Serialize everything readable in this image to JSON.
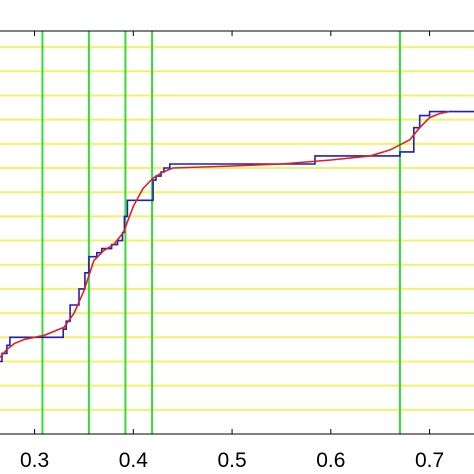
{
  "chart_data": {
    "type": "line",
    "title": "",
    "xlabel": "",
    "ylabel": "",
    "xlim": [
      0.265,
      0.745
    ],
    "ylim": [
      0,
      1
    ],
    "x_ticks": [
      0.3,
      0.4,
      0.5,
      0.6,
      0.7
    ],
    "x_tick_labels": [
      "0.3",
      "0.4",
      "0.5",
      "0.6",
      "0.7"
    ],
    "grid": false,
    "colors": {
      "background": "#ffffff",
      "axes": "#000000",
      "horizontal_reference": "#f4f06a",
      "vertical_reference": "#33dd33",
      "step_series": "#1f1fbf",
      "fit_series": "#e0201c"
    },
    "horizontal_reference_y": [
      0.06,
      0.12,
      0.18,
      0.24,
      0.3,
      0.36,
      0.42,
      0.48,
      0.54,
      0.6,
      0.66,
      0.72,
      0.78,
      0.84,
      0.9,
      0.96
    ],
    "vertical_reference_x": [
      0.308,
      0.355,
      0.392,
      0.419,
      0.67
    ],
    "series": [
      {
        "style": "step",
        "x": [
          0.265,
          0.267,
          0.267,
          0.272,
          0.272,
          0.275,
          0.275,
          0.329,
          0.329,
          0.332,
          0.332,
          0.336,
          0.336,
          0.345,
          0.345,
          0.351,
          0.351,
          0.355,
          0.355,
          0.363,
          0.363,
          0.368,
          0.368,
          0.378,
          0.378,
          0.384,
          0.384,
          0.389,
          0.389,
          0.391,
          0.391,
          0.394,
          0.394,
          0.42,
          0.42,
          0.423,
          0.423,
          0.428,
          0.428,
          0.431,
          0.431,
          0.437,
          0.437,
          0.584,
          0.584,
          0.67,
          0.67,
          0.684,
          0.684,
          0.69,
          0.69,
          0.7,
          0.7,
          0.745
        ],
        "y": [
          0.18,
          0.18,
          0.2,
          0.2,
          0.22,
          0.22,
          0.24,
          0.24,
          0.26,
          0.26,
          0.28,
          0.28,
          0.32,
          0.32,
          0.36,
          0.36,
          0.4,
          0.4,
          0.44,
          0.44,
          0.45,
          0.45,
          0.46,
          0.46,
          0.47,
          0.47,
          0.48,
          0.48,
          0.5,
          0.5,
          0.54,
          0.54,
          0.58,
          0.58,
          0.63,
          0.63,
          0.64,
          0.64,
          0.65,
          0.65,
          0.66,
          0.66,
          0.67,
          0.67,
          0.69,
          0.69,
          0.7,
          0.7,
          0.76,
          0.76,
          0.79,
          0.79,
          0.8,
          0.8
        ]
      },
      {
        "style": "line",
        "x": [
          0.265,
          0.272,
          0.28,
          0.29,
          0.3,
          0.31,
          0.32,
          0.33,
          0.34,
          0.35,
          0.36,
          0.37,
          0.38,
          0.39,
          0.4,
          0.41,
          0.42,
          0.43,
          0.44,
          0.5,
          0.55,
          0.6,
          0.64,
          0.66,
          0.68,
          0.69,
          0.7,
          0.71,
          0.72
        ],
        "y": [
          0.19,
          0.21,
          0.225,
          0.235,
          0.24,
          0.245,
          0.255,
          0.265,
          0.3,
          0.355,
          0.43,
          0.455,
          0.47,
          0.5,
          0.565,
          0.61,
          0.635,
          0.65,
          0.66,
          0.665,
          0.67,
          0.68,
          0.69,
          0.705,
          0.73,
          0.76,
          0.785,
          0.795,
          0.8
        ]
      }
    ]
  }
}
